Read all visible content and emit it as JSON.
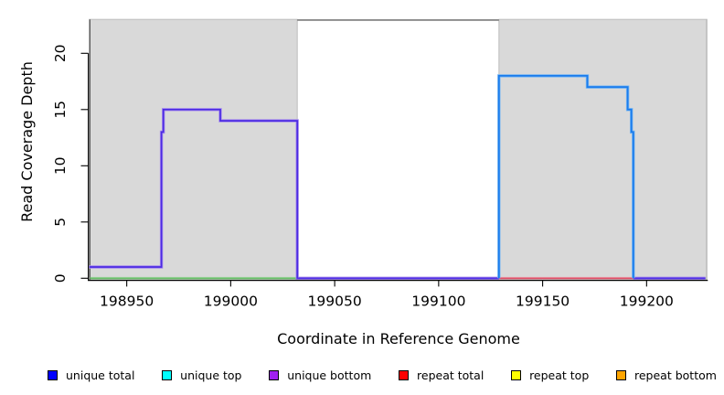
{
  "chart_data": {
    "type": "line",
    "subtype": "step-coverage",
    "title": "",
    "xlabel": "Coordinate in Reference Genome",
    "ylabel": "Read Coverage Depth",
    "x_range": [
      198932,
      199229
    ],
    "y_range": [
      0,
      23.2
    ],
    "x_ticks": [
      198950,
      199000,
      199050,
      199100,
      199150,
      199200
    ],
    "y_ticks": [
      0,
      5,
      10,
      15,
      20
    ],
    "grid": false,
    "region_fill": "#d9d9d9",
    "region_border": "#bdbdbd",
    "box_line_color": "#7a7a7a",
    "repeat_regions": [
      {
        "start": 198932,
        "end": 199032
      },
      {
        "start": 199129,
        "end": 199229
      }
    ],
    "series": [
      {
        "name": "left-region-zero-baseline",
        "color": "#63b863",
        "halo": "#aadcaa",
        "width": 1.3,
        "halo_width": 2.8,
        "points": [
          [
            198932.4,
            0
          ],
          [
            199031.8,
            0
          ]
        ]
      },
      {
        "name": "right-region-zero-baseline",
        "color": "#d94a62",
        "halo": "#efaab5",
        "width": 1.3,
        "halo_width": 2.8,
        "points": [
          [
            199129,
            0
          ],
          [
            199193.6,
            0
          ]
        ]
      },
      {
        "name": "unique-coverage-left",
        "color": "#4b2be2",
        "halo": "#a68bee",
        "width": 1.7,
        "halo_width": 3.4,
        "points": [
          [
            198932,
            1
          ],
          [
            198966.7,
            1
          ],
          [
            198966.7,
            13
          ],
          [
            198967.6,
            13
          ],
          [
            198967.6,
            15
          ],
          [
            198995,
            15
          ],
          [
            198995,
            14
          ],
          [
            199032,
            14
          ],
          [
            199032,
            0
          ],
          [
            199129,
            0
          ]
        ]
      },
      {
        "name": "unique-coverage-right-tail",
        "color": "#4b2be2",
        "halo": "#a68bee",
        "width": 1.7,
        "halo_width": 3.4,
        "points": [
          [
            199193.6,
            0
          ],
          [
            199228.3,
            0
          ]
        ]
      },
      {
        "name": "unique-coverage-right",
        "color": "#1b7cec",
        "halo": "#76b6f3",
        "width": 1.8,
        "halo_width": 3.4,
        "points": [
          [
            199129,
            0
          ],
          [
            199129,
            18
          ],
          [
            199171.5,
            18
          ],
          [
            199171.5,
            17
          ],
          [
            199190.9,
            17
          ],
          [
            199190.9,
            15
          ],
          [
            199192.7,
            15
          ],
          [
            199192.7,
            13
          ],
          [
            199193.6,
            13
          ],
          [
            199193.6,
            0
          ]
        ]
      }
    ],
    "legend": {
      "position": "bottom",
      "entries": [
        {
          "label": "unique total",
          "color": "#0000ff"
        },
        {
          "label": "unique top",
          "color": "#00ffff"
        },
        {
          "label": "unique bottom",
          "color": "#a020f0"
        },
        {
          "label": "repeat total",
          "color": "#ff0000"
        },
        {
          "label": "repeat top",
          "color": "#ffff00"
        },
        {
          "label": "repeat bottom",
          "color": "#ffa500"
        }
      ]
    }
  }
}
